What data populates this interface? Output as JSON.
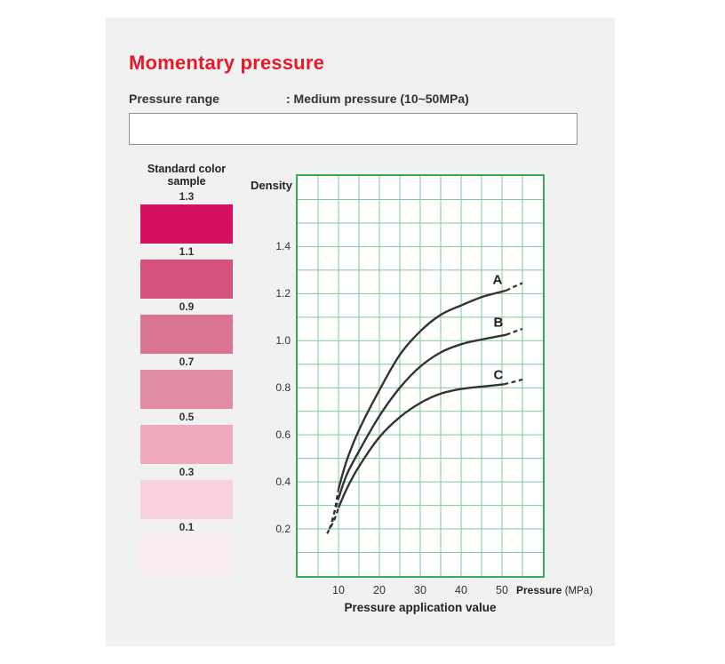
{
  "page": {
    "background": "#ffffff",
    "card_background": "#f1f1f2",
    "title_color": "#e61b28"
  },
  "header": {
    "title": "Momentary pressure",
    "pressure_range_label": "Pressure range",
    "pressure_range_value": ": Medium pressure (10~50MPa)",
    "note_box_text": ""
  },
  "color_samples": {
    "heading": "Standard color sample",
    "items": [
      {
        "label": "1.3",
        "color": "#d50f62"
      },
      {
        "label": "1.1",
        "color": "#d4517c"
      },
      {
        "label": "0.9",
        "color": "#d97590"
      },
      {
        "label": "0.7",
        "color": "#e28ca4"
      },
      {
        "label": "0.5",
        "color": "#f0aabe"
      },
      {
        "label": "0.3",
        "color": "#f8d2dc"
      },
      {
        "label": "0.1",
        "color": "#fcebf0"
      }
    ]
  },
  "chart_data": {
    "type": "line",
    "title": "",
    "ylabel": "Density",
    "xlabel": "Pressure application value",
    "x_unit_label_bold": "Pressure",
    "x_unit_label_unit": "(MPa)",
    "xlim": [
      0,
      60
    ],
    "ylim": [
      0,
      1.7
    ],
    "grid": {
      "x_step": 5,
      "y_step": 0.1,
      "line_color": "#82c893",
      "border_color": "#3aab55"
    },
    "x_ticks": [
      10,
      20,
      30,
      40,
      50
    ],
    "y_ticks": [
      "0.2",
      "0.4",
      "0.6",
      "0.8",
      "1.0",
      "1.2",
      "1.4"
    ],
    "curve_color": "#333333",
    "note": "Curves are dashed below ~10 MPa and above ~51 MPa",
    "series": [
      {
        "name": "A",
        "label_pos": [
          48.9,
          1.254
        ],
        "dashed_head": [
          [
            8.5,
            0.23
          ],
          [
            9.3,
            0.3
          ],
          [
            10,
            0.37
          ]
        ],
        "solid": [
          [
            10,
            0.37
          ],
          [
            12,
            0.49
          ],
          [
            15,
            0.62
          ],
          [
            20,
            0.79
          ],
          [
            25,
            0.94
          ],
          [
            30,
            1.04
          ],
          [
            35,
            1.11
          ],
          [
            40,
            1.15
          ],
          [
            45,
            1.185
          ],
          [
            48,
            1.2
          ],
          [
            51,
            1.213
          ]
        ],
        "dashed_tail": [
          [
            51,
            1.213
          ],
          [
            53,
            1.23
          ],
          [
            55,
            1.245
          ]
        ]
      },
      {
        "name": "B",
        "label_pos": [
          49.1,
          1.073
        ],
        "dashed_head": [
          [
            7.8,
            0.2
          ],
          [
            9,
            0.27
          ],
          [
            10,
            0.33
          ]
        ],
        "solid": [
          [
            10,
            0.33
          ],
          [
            12,
            0.43
          ],
          [
            15,
            0.53
          ],
          [
            20,
            0.68
          ],
          [
            25,
            0.8
          ],
          [
            30,
            0.89
          ],
          [
            35,
            0.95
          ],
          [
            40,
            0.985
          ],
          [
            45,
            1.005
          ],
          [
            48,
            1.015
          ],
          [
            51,
            1.025
          ]
        ],
        "dashed_tail": [
          [
            51,
            1.025
          ],
          [
            53,
            1.038
          ],
          [
            55,
            1.05
          ]
        ]
      },
      {
        "name": "C",
        "label_pos": [
          49.1,
          0.85
        ],
        "dashed_head": [
          [
            7.2,
            0.18
          ],
          [
            9,
            0.24
          ],
          [
            10,
            0.29
          ]
        ],
        "solid": [
          [
            10,
            0.29
          ],
          [
            12,
            0.37
          ],
          [
            15,
            0.465
          ],
          [
            20,
            0.59
          ],
          [
            25,
            0.675
          ],
          [
            30,
            0.735
          ],
          [
            35,
            0.775
          ],
          [
            40,
            0.795
          ],
          [
            45,
            0.805
          ],
          [
            48,
            0.81
          ],
          [
            50.5,
            0.815
          ]
        ],
        "dashed_tail": [
          [
            50.5,
            0.815
          ],
          [
            53,
            0.826
          ],
          [
            55,
            0.835
          ]
        ]
      }
    ]
  }
}
